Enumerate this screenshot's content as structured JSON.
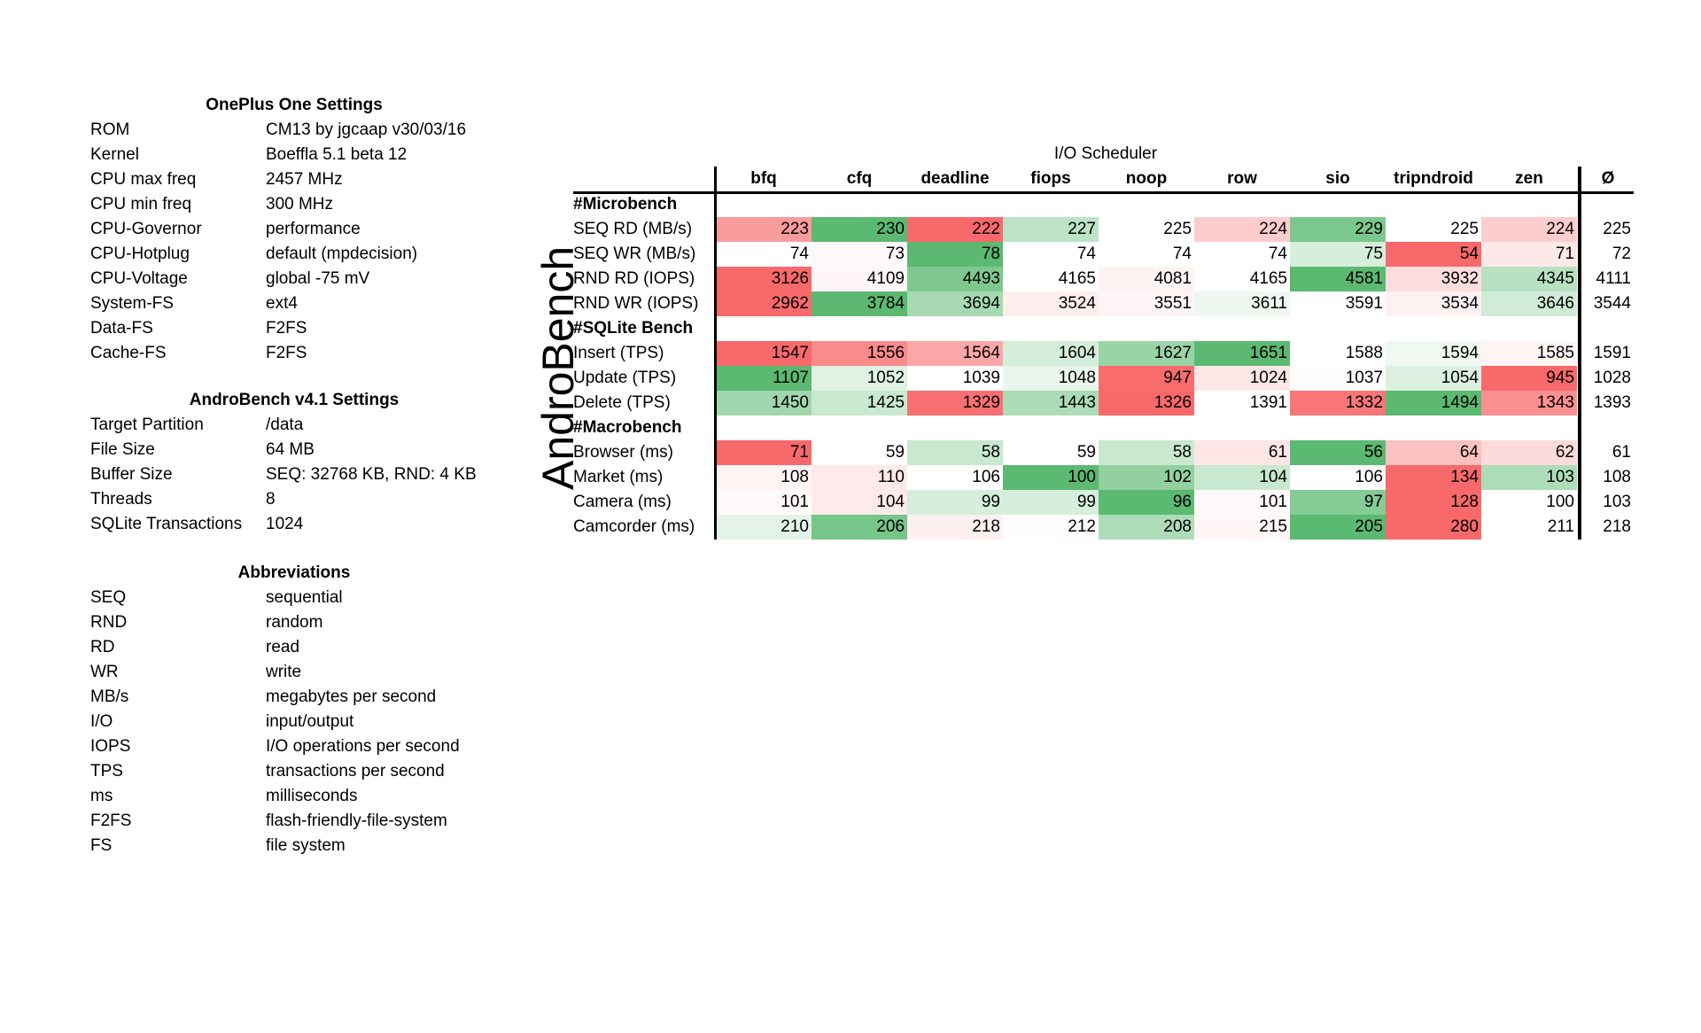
{
  "colors": {
    "best": "#5bb971",
    "worst": "#f8696b",
    "neutral": "#ffffff"
  },
  "settings": {
    "title": "OnePlus One Settings",
    "rows": [
      {
        "key": "ROM",
        "value": "CM13 by jgcaap v30/03/16"
      },
      {
        "key": "Kernel",
        "value": "Boeffla 5.1 beta 12"
      },
      {
        "key": "CPU max freq",
        "value": "2457 MHz"
      },
      {
        "key": "CPU min freq",
        "value": "300 MHz"
      },
      {
        "key": "CPU-Governor",
        "value": "performance"
      },
      {
        "key": "CPU-Hotplug",
        "value": "default (mpdecision)"
      },
      {
        "key": "CPU-Voltage",
        "value": "global -75 mV"
      },
      {
        "key": "System-FS",
        "value": "ext4"
      },
      {
        "key": "Data-FS",
        "value": "F2FS"
      },
      {
        "key": "Cache-FS",
        "value": "F2FS"
      }
    ]
  },
  "androbench_settings": {
    "title": "AndroBench v4.1 Settings",
    "rows": [
      {
        "key": "Target Partition",
        "value": "/data"
      },
      {
        "key": "File Size",
        "value": "64 MB"
      },
      {
        "key": "Buffer Size",
        "value": "SEQ: 32768 KB, RND: 4 KB"
      },
      {
        "key": "Threads",
        "value": "8"
      },
      {
        "key": "SQLite Transactions",
        "value": "1024"
      }
    ]
  },
  "abbreviations": {
    "title": "Abbreviations",
    "rows": [
      {
        "key": "SEQ",
        "value": "sequential"
      },
      {
        "key": "RND",
        "value": "random"
      },
      {
        "key": "RD",
        "value": "read"
      },
      {
        "key": "WR",
        "value": "write"
      },
      {
        "key": "MB/s",
        "value": "megabytes per second"
      },
      {
        "key": "I/O",
        "value": "input/output"
      },
      {
        "key": "IOPS",
        "value": "I/O operations  per second"
      },
      {
        "key": "TPS",
        "value": "transactions per second"
      },
      {
        "key": "ms",
        "value": "milliseconds"
      },
      {
        "key": "F2FS",
        "value": "flash-friendly-file-system"
      },
      {
        "key": "FS",
        "value": "file system"
      }
    ]
  },
  "results": {
    "super_title": "I/O Scheduler",
    "side_label": "AndroBench",
    "schedulers": [
      "bfq",
      "cfq",
      "deadline",
      "fiops",
      "noop",
      "row",
      "sio",
      "tripndroid",
      "zen"
    ],
    "avg_label": "Ø",
    "rows": [
      {
        "type": "section",
        "label": "#Microbench"
      },
      {
        "type": "data",
        "label": "SEQ RD (MB/s)",
        "higher_is_better": true,
        "values": [
          223,
          230,
          222,
          227,
          225,
          224,
          229,
          225,
          224
        ],
        "avg": 225
      },
      {
        "type": "data",
        "label": "SEQ WR (MB/s)",
        "higher_is_better": true,
        "values": [
          74,
          73,
          78,
          74,
          74,
          74,
          75,
          54,
          71
        ],
        "avg": 72
      },
      {
        "type": "data",
        "label": "RND RD (IOPS)",
        "higher_is_better": true,
        "values": [
          3126,
          4109,
          4493,
          4165,
          4081,
          4165,
          4581,
          3932,
          4345
        ],
        "avg": 4111
      },
      {
        "type": "data",
        "label": "RND WR (IOPS)",
        "higher_is_better": true,
        "values": [
          2962,
          3784,
          3694,
          3524,
          3551,
          3611,
          3591,
          3534,
          3646
        ],
        "avg": 3544
      },
      {
        "type": "section",
        "label": "#SQLite Bench"
      },
      {
        "type": "data",
        "label": "Insert (TPS)",
        "higher_is_better": true,
        "values": [
          1547,
          1556,
          1564,
          1604,
          1627,
          1651,
          1588,
          1594,
          1585
        ],
        "avg": 1591
      },
      {
        "type": "data",
        "label": "Update (TPS)",
        "higher_is_better": true,
        "values": [
          1107,
          1052,
          1039,
          1048,
          947,
          1024,
          1037,
          1054,
          945
        ],
        "avg": 1028
      },
      {
        "type": "data",
        "label": "Delete (TPS)",
        "higher_is_better": true,
        "values": [
          1450,
          1425,
          1329,
          1443,
          1326,
          1391,
          1332,
          1494,
          1343
        ],
        "avg": 1393
      },
      {
        "type": "section",
        "label": "#Macrobench"
      },
      {
        "type": "data",
        "label": "Browser (ms)",
        "higher_is_better": false,
        "values": [
          71,
          59,
          58,
          59,
          58,
          61,
          56,
          64,
          62
        ],
        "avg": 61
      },
      {
        "type": "data",
        "label": "Market (ms)",
        "higher_is_better": false,
        "values": [
          108,
          110,
          106,
          100,
          102,
          104,
          106,
          134,
          103
        ],
        "avg": 108
      },
      {
        "type": "data",
        "label": "Camera (ms)",
        "higher_is_better": false,
        "values": [
          101,
          104,
          99,
          99,
          96,
          101,
          97,
          128,
          100
        ],
        "avg": 103
      },
      {
        "type": "data",
        "label": "Camcorder (ms)",
        "higher_is_better": false,
        "values": [
          210,
          206,
          218,
          212,
          208,
          215,
          205,
          280,
          211
        ],
        "avg": 218
      }
    ]
  }
}
